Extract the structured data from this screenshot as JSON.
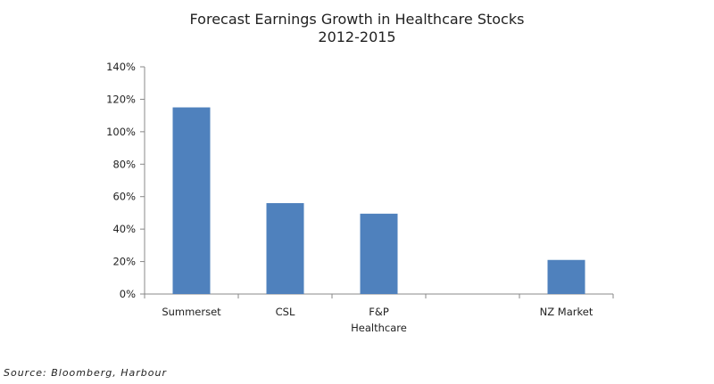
{
  "chart_data": {
    "type": "bar",
    "title": "Forecast Earnings Growth in Healthcare Stocks",
    "subtitle": "2012-2015",
    "categories": [
      "Summerset",
      "CSL",
      "F&P Healthcare",
      "",
      "NZ Market"
    ],
    "values": [
      115,
      56,
      49.5,
      null,
      21
    ],
    "ylim": [
      0,
      140
    ],
    "yticks": [
      "0%",
      "20%",
      "40%",
      "60%",
      "80%",
      "100%",
      "120%",
      "140%"
    ],
    "xlabel": "",
    "ylabel": "",
    "grid": false,
    "bar_color": "#4f81bd",
    "source": "Source: Bloomberg, Harbour"
  }
}
